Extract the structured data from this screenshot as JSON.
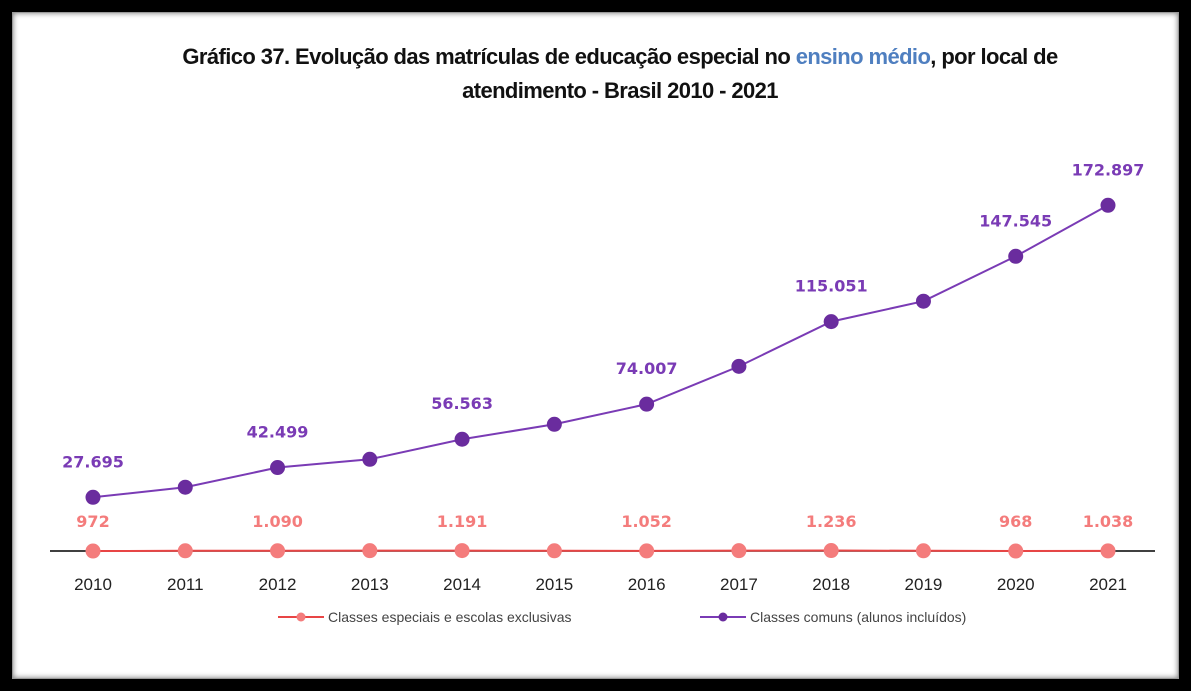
{
  "chart_data": {
    "type": "line",
    "title_parts": [
      "Gráfico 37. Evolução das matrículas de educação especial no",
      "ensino médio",
      ", por local de",
      "atendimento  - Brasil 2010 - 2021"
    ],
    "categories": [
      "2010",
      "2011",
      "2012",
      "2013",
      "2014",
      "2015",
      "2016",
      "2017",
      "2018",
      "2019",
      "2020",
      "2021"
    ],
    "ylim": [
      0,
      180000
    ],
    "legend": "bottom",
    "series": [
      {
        "name": "Classes especiais e escolas exclusivas",
        "color": "#f47c7c",
        "line_color": "#e84545",
        "values": [
          972,
          1100,
          1090,
          1150,
          1191,
          1100,
          1052,
          1150,
          1236,
          1100,
          968,
          1038
        ],
        "value_labels": [
          "972",
          null,
          "1.090",
          null,
          "1.191",
          null,
          "1.052",
          null,
          "1.236",
          null,
          "968",
          "1.038"
        ]
      },
      {
        "name": "Classes comuns (alunos incluídos)",
        "color": "#6a2c9e",
        "line_color": "#7a3bb5",
        "values": [
          27695,
          32700,
          42499,
          46600,
          56563,
          64000,
          74007,
          92800,
          115051,
          125200,
          147545,
          172897
        ],
        "value_labels": [
          "27.695",
          null,
          "42.499",
          null,
          "56.563",
          null,
          "74.007",
          null,
          "115.051",
          null,
          "147.545",
          "172.897"
        ]
      }
    ]
  }
}
